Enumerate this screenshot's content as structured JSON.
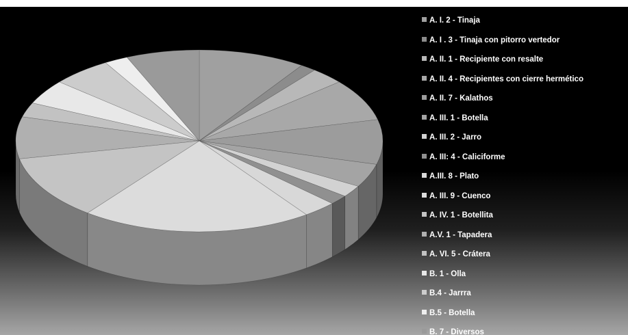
{
  "chart_data": {
    "type": "pie",
    "title": "",
    "legend_position": "right",
    "categories": [
      "A. I. 2 - Tinaja",
      "A. I . 3 - Tinaja con pitorro vertedor",
      "A. II. 1 - Recipiente con resalte",
      "A. II. 4 - Recipientes con cierre hermético",
      "A. II. 7 - Kalathos",
      "A. III. 1 - Botella",
      "A. III. 2 - Jarro",
      "A. III: 4 - Caliciforme",
      "A.III. 8 - Plato",
      "A. III. 9 - Cuenco",
      "A. IV. 1 - Botellita",
      "A.V. 1 - Tapadera",
      "A. VI. 5 - Crátera",
      "B. 1 - Olla",
      "B.4 - Jarrra",
      "B.5 - Botella",
      "B. 7 - Diversos"
    ],
    "values": [
      9.5,
      1.4,
      3.0,
      7.5,
      8.0,
      4.2,
      2.1,
      1.7,
      3.0,
      20.5,
      11.5,
      7.5,
      2.6,
      4.4,
      5.3,
      2.1,
      6.5
    ],
    "colors": [
      "#a0a0a0",
      "#8c8c8c",
      "#b8b8b8",
      "#a8a8a8",
      "#9c9c9c",
      "#a4a4a4",
      "#d2d2d2",
      "#909090",
      "#d8d8d8",
      "#dcdcdc",
      "#c4c4c4",
      "#b0b0b0",
      "#c2c2c2",
      "#e8e8e8",
      "#cccccc",
      "#eeeeee",
      "#9a9a9a"
    ]
  }
}
